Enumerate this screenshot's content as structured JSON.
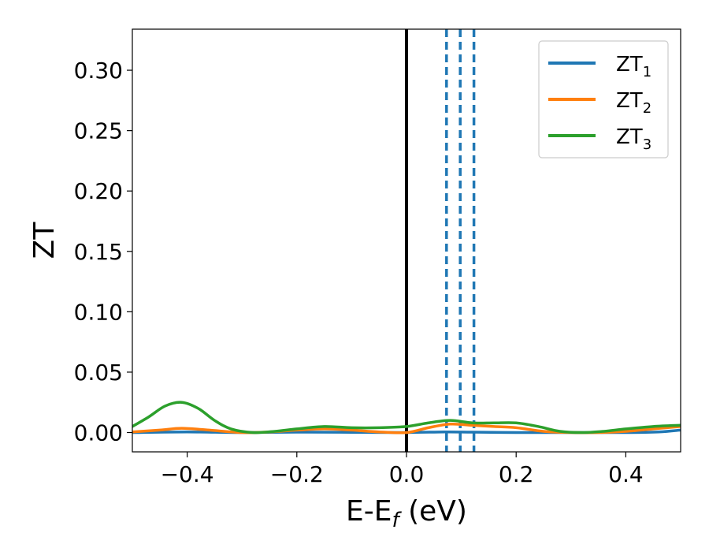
{
  "chart_data": {
    "type": "line",
    "xlabel_parts": [
      "E-E",
      "f",
      " (eV)"
    ],
    "ylabel": "ZT",
    "xlim": [
      -0.5,
      0.5
    ],
    "ylim": [
      -0.016,
      0.334
    ],
    "xticks": [
      -0.4,
      -0.2,
      0.0,
      0.2,
      0.4
    ],
    "xtick_labels": [
      "−0.4",
      "−0.2",
      "0.0",
      "0.2",
      "0.4"
    ],
    "yticks": [
      0.0,
      0.05,
      0.1,
      0.15,
      0.2,
      0.25,
      0.3
    ],
    "ytick_labels": [
      "0.00",
      "0.05",
      "0.10",
      "0.15",
      "0.20",
      "0.25",
      "0.30"
    ],
    "grid": false,
    "legend_position": "top-right",
    "series": [
      {
        "name_base": "ZT",
        "name_sub": "1",
        "color": "#1f77b4",
        "x": [
          -0.5,
          -0.4,
          -0.3,
          -0.2,
          -0.1,
          0.0,
          0.07,
          0.12,
          0.2,
          0.3,
          0.4,
          0.46,
          0.5
        ],
        "y": [
          0.0,
          0.0005,
          0.0,
          0.0003,
          0.0002,
          0.0,
          0.0005,
          0.0003,
          0.0,
          0.0,
          0.0,
          0.0005,
          0.002
        ]
      },
      {
        "name_base": "ZT",
        "name_sub": "2",
        "color": "#ff7f0e",
        "x": [
          -0.5,
          -0.45,
          -0.41,
          -0.36,
          -0.3,
          -0.25,
          -0.2,
          -0.15,
          -0.1,
          -0.05,
          0.0,
          0.04,
          0.08,
          0.12,
          0.16,
          0.2,
          0.25,
          0.3,
          0.35,
          0.4,
          0.45,
          0.5
        ],
        "y": [
          0.0005,
          0.002,
          0.0035,
          0.002,
          0.0,
          0.0005,
          0.002,
          0.003,
          0.002,
          0.0005,
          0.0,
          0.004,
          0.007,
          0.006,
          0.005,
          0.004,
          0.001,
          0.0,
          0.0,
          0.001,
          0.003,
          0.005
        ]
      },
      {
        "name_base": "ZT",
        "name_sub": "3",
        "color": "#2ca02c",
        "x": [
          -0.5,
          -0.47,
          -0.44,
          -0.41,
          -0.38,
          -0.35,
          -0.32,
          -0.28,
          -0.24,
          -0.2,
          -0.15,
          -0.1,
          -0.05,
          0.0,
          0.04,
          0.08,
          0.12,
          0.16,
          0.2,
          0.24,
          0.28,
          0.32,
          0.36,
          0.4,
          0.45,
          0.5
        ],
        "y": [
          0.005,
          0.013,
          0.022,
          0.025,
          0.02,
          0.01,
          0.003,
          0.0,
          0.001,
          0.003,
          0.005,
          0.004,
          0.004,
          0.005,
          0.008,
          0.01,
          0.008,
          0.008,
          0.008,
          0.005,
          0.001,
          0.0,
          0.001,
          0.003,
          0.005,
          0.006
        ]
      }
    ],
    "vlines": [
      {
        "x": 0.0,
        "color": "#000000",
        "style": "solid"
      },
      {
        "x": 0.073,
        "color": "#1f77b4",
        "style": "dashed"
      },
      {
        "x": 0.098,
        "color": "#1f77b4",
        "style": "dashed"
      },
      {
        "x": 0.123,
        "color": "#1f77b4",
        "style": "dashed"
      }
    ]
  }
}
